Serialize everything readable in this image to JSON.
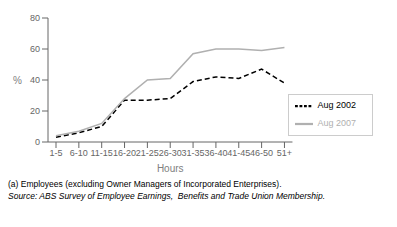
{
  "chart_data": {
    "type": "line",
    "categories": [
      "1-5",
      "6-10",
      "11-15",
      "16-20",
      "21-25",
      "26-30",
      "31-35",
      "36-40",
      "41-45",
      "46-50",
      "51+"
    ],
    "series": [
      {
        "name": "Aug 2002",
        "color": "#000000",
        "line_style": "dashed",
        "values": [
          3,
          6,
          10,
          27,
          27,
          28,
          39,
          42,
          41,
          47,
          38
        ]
      },
      {
        "name": "Aug 2007",
        "color": "#b0b0b0",
        "line_style": "solid",
        "values": [
          4,
          7,
          12,
          28,
          40,
          41,
          57,
          60,
          60,
          59,
          61
        ]
      }
    ],
    "xlabel": "Hours",
    "ylabel": "%",
    "ylim": [
      0,
      80
    ],
    "yticks": [
      0,
      20,
      40,
      60,
      80
    ],
    "grid": false,
    "legend": "lower right",
    "annotations": [
      "(a) Employees (excluding Owner Managers of Incorporated Enterprises).",
      "Source: ABS Survey of Employee Earnings,  Benefits and Trade Union Membership."
    ]
  }
}
